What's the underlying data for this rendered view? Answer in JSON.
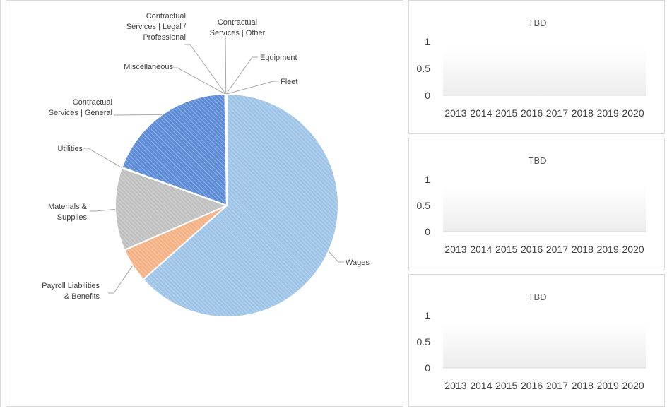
{
  "chart_data": [
    {
      "type": "pie",
      "title": "",
      "slices": [
        {
          "label": "Wages",
          "value": 63.5,
          "color": "#9dc3e6"
        },
        {
          "label": "Payroll Liabilities & Benefits",
          "value": 5.0,
          "color": "#f4b183"
        },
        {
          "label": "Materials & Supplies",
          "value": 12.0,
          "color": "#bfbfbf"
        },
        {
          "label": "Utilities",
          "value": 0.1,
          "color": "#ffd966"
        },
        {
          "label": "Contractual Services | General",
          "value": 19.2,
          "color": "#5b8bd6"
        },
        {
          "label": "Miscellaneous",
          "value": 0.05,
          "color": "#70ad47"
        },
        {
          "label": "Contractual Services | Legal / Professional",
          "value": 0.05,
          "color": "#264478"
        },
        {
          "label": "Contractual Services | Other",
          "value": 0.05,
          "color": "#9e480e"
        },
        {
          "label": "Equipment",
          "value": 0.05,
          "color": "#636363"
        },
        {
          "label": "Fleet",
          "value": 0.05,
          "color": "#997300"
        }
      ]
    },
    {
      "type": "bar",
      "title": "TBD",
      "categories": [
        "2013",
        "2014",
        "2015",
        "2016",
        "2017",
        "2018",
        "2019",
        "2020"
      ],
      "values": [
        0,
        0,
        0,
        0,
        0,
        0,
        0,
        0
      ],
      "ylim": [
        0,
        1
      ],
      "yticks": [
        "0",
        "0.5",
        "1"
      ]
    },
    {
      "type": "bar",
      "title": "TBD",
      "categories": [
        "2013",
        "2014",
        "2015",
        "2016",
        "2017",
        "2018",
        "2019",
        "2020"
      ],
      "values": [
        0,
        0,
        0,
        0,
        0,
        0,
        0,
        0
      ],
      "ylim": [
        0,
        1
      ],
      "yticks": [
        "0",
        "0.5",
        "1"
      ]
    },
    {
      "type": "bar",
      "title": "TBD",
      "categories": [
        "2013",
        "2014",
        "2015",
        "2016",
        "2017",
        "2018",
        "2019",
        "2020"
      ],
      "values": [
        0,
        0,
        0,
        0,
        0,
        0,
        0,
        0
      ],
      "ylim": [
        0,
        1
      ],
      "yticks": [
        "0",
        "0.5",
        "1"
      ]
    }
  ]
}
